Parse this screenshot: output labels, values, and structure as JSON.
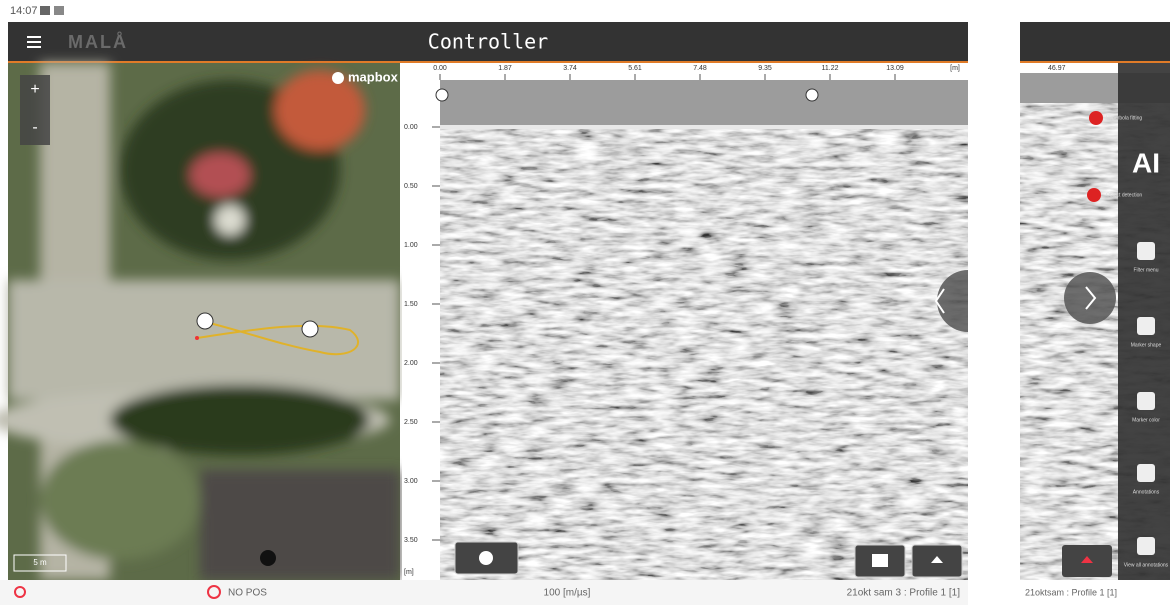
{
  "status_bar": {
    "time": "14:07"
  },
  "app_bar": {
    "logo": "MALÅ",
    "title": "Controller"
  },
  "map": {
    "attribution": "mapbox",
    "scale": "5 m",
    "zoom_in": "+",
    "zoom_out": "-"
  },
  "radar": {
    "x_ticks": [
      "0.00",
      "1.87",
      "3.74",
      "5.61",
      "7.48",
      "9.35",
      "11.22",
      "13.09"
    ],
    "x_unit": "[m]",
    "depth_ticks": [
      "0.00",
      "0.50",
      "1.00",
      "1.50",
      "2.00",
      "2.50",
      "3.00",
      "3.50"
    ],
    "depth_unit": "[m]"
  },
  "bottom_bar": {
    "position": "NO POS",
    "velocity": "100 [m/µs]",
    "profile": "21okt sam 3 : Profile 1 [1]"
  },
  "second_device": {
    "ruler_start": "46.97",
    "ai": "AI",
    "menu": [
      "Hyperbola fitting",
      "Object detection",
      "Filter menu",
      "Marker shape",
      "Marker color",
      "Annotations",
      "View all annotations"
    ],
    "profile": "21oktsam : Profile 1 [1]"
  }
}
